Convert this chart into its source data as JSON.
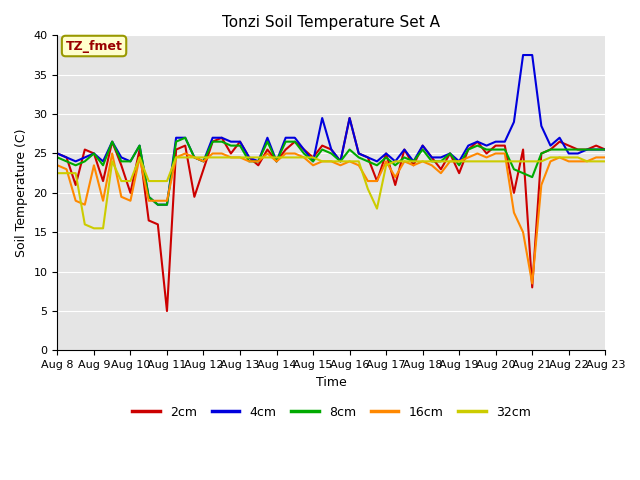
{
  "title": "Tonzi Soil Temperature Set A",
  "xlabel": "Time",
  "ylabel": "Soil Temperature (C)",
  "annotation": "TZ_fmet",
  "ylim": [
    0,
    40
  ],
  "yticks": [
    0,
    5,
    10,
    15,
    20,
    25,
    30,
    35,
    40
  ],
  "bg_color": "#e5e5e5",
  "grid_color": "#ffffff",
  "line_colors": [
    "#cc0000",
    "#0000dd",
    "#00aa00",
    "#ff8800",
    "#cccc00"
  ],
  "series_names": [
    "2cm",
    "4cm",
    "8cm",
    "16cm",
    "32cm"
  ],
  "data_2cm": [
    25.0,
    24.5,
    21.0,
    25.5,
    25.0,
    21.5,
    26.5,
    23.5,
    20.0,
    25.5,
    16.5,
    16.0,
    5.0,
    25.5,
    26.0,
    19.5,
    23.0,
    26.5,
    27.0,
    25.0,
    26.5,
    24.5,
    23.5,
    25.5,
    24.0,
    25.5,
    26.5,
    25.5,
    24.5,
    26.0,
    25.5,
    24.0,
    29.5,
    25.0,
    24.5,
    21.5,
    25.0,
    21.0,
    25.5,
    23.5,
    26.0,
    24.5,
    23.0,
    25.0,
    22.5,
    25.5,
    26.5,
    25.0,
    26.0,
    26.0,
    20.0,
    25.5,
    8.0,
    25.0,
    25.5,
    26.5,
    26.0,
    25.5,
    25.5,
    26.0,
    25.5
  ],
  "data_4cm": [
    25.0,
    24.5,
    24.0,
    24.5,
    25.0,
    24.0,
    26.5,
    24.5,
    24.0,
    26.0,
    19.5,
    18.5,
    18.5,
    27.0,
    27.0,
    24.5,
    24.0,
    27.0,
    27.0,
    26.5,
    26.5,
    24.5,
    24.0,
    27.0,
    24.0,
    27.0,
    27.0,
    25.5,
    24.0,
    29.5,
    25.5,
    24.0,
    29.5,
    25.0,
    24.5,
    24.0,
    25.0,
    24.0,
    25.5,
    24.0,
    26.0,
    24.5,
    24.5,
    25.0,
    24.0,
    26.0,
    26.5,
    26.0,
    26.5,
    26.5,
    29.0,
    37.5,
    37.5,
    28.5,
    26.0,
    27.0,
    25.0,
    25.0,
    25.5,
    25.5,
    25.5
  ],
  "data_8cm": [
    24.5,
    24.0,
    23.5,
    24.0,
    25.0,
    23.5,
    26.5,
    24.0,
    24.0,
    26.0,
    19.5,
    18.5,
    18.5,
    26.5,
    27.0,
    24.5,
    24.0,
    26.5,
    26.5,
    26.0,
    26.0,
    24.0,
    24.0,
    26.5,
    24.0,
    26.5,
    26.5,
    25.0,
    24.0,
    25.5,
    25.0,
    24.0,
    25.5,
    24.5,
    24.0,
    23.5,
    24.5,
    23.5,
    24.5,
    24.0,
    25.5,
    24.0,
    24.0,
    25.0,
    23.5,
    25.5,
    26.0,
    25.5,
    25.5,
    25.5,
    23.0,
    22.5,
    22.0,
    25.0,
    25.5,
    25.5,
    25.5,
    25.5,
    25.5,
    25.5,
    25.5
  ],
  "data_16cm": [
    23.5,
    23.0,
    19.0,
    18.5,
    23.5,
    19.0,
    25.0,
    19.5,
    19.0,
    24.5,
    19.0,
    19.0,
    19.0,
    24.5,
    25.0,
    24.5,
    24.0,
    25.0,
    25.0,
    24.5,
    24.5,
    24.0,
    24.0,
    25.0,
    24.0,
    25.0,
    25.0,
    24.5,
    23.5,
    24.0,
    24.0,
    23.5,
    24.0,
    23.5,
    21.5,
    21.5,
    24.0,
    22.0,
    24.0,
    23.5,
    24.0,
    23.5,
    22.5,
    24.0,
    24.0,
    24.5,
    25.0,
    24.5,
    25.0,
    25.0,
    17.5,
    15.0,
    8.5,
    21.0,
    24.0,
    24.5,
    24.0,
    24.0,
    24.0,
    24.5,
    24.5
  ],
  "data_32cm": [
    22.5,
    22.5,
    22.5,
    16.0,
    15.5,
    15.5,
    24.0,
    21.5,
    21.5,
    24.5,
    21.5,
    21.5,
    21.5,
    24.5,
    24.5,
    24.5,
    24.5,
    24.5,
    24.5,
    24.5,
    24.5,
    24.5,
    24.5,
    24.5,
    24.5,
    24.5,
    24.5,
    24.5,
    24.5,
    24.0,
    24.0,
    24.0,
    24.0,
    24.0,
    20.5,
    18.0,
    23.5,
    24.0,
    24.0,
    24.0,
    24.0,
    24.0,
    24.0,
    24.0,
    24.0,
    24.0,
    24.0,
    24.0,
    24.0,
    24.0,
    24.0,
    24.0,
    24.0,
    24.0,
    24.5,
    24.5,
    24.5,
    24.5,
    24.0,
    24.0,
    24.0
  ],
  "num_days": 15,
  "start_day": 8,
  "title_fontsize": 11,
  "label_fontsize": 9,
  "tick_fontsize": 8,
  "legend_fontsize": 9
}
